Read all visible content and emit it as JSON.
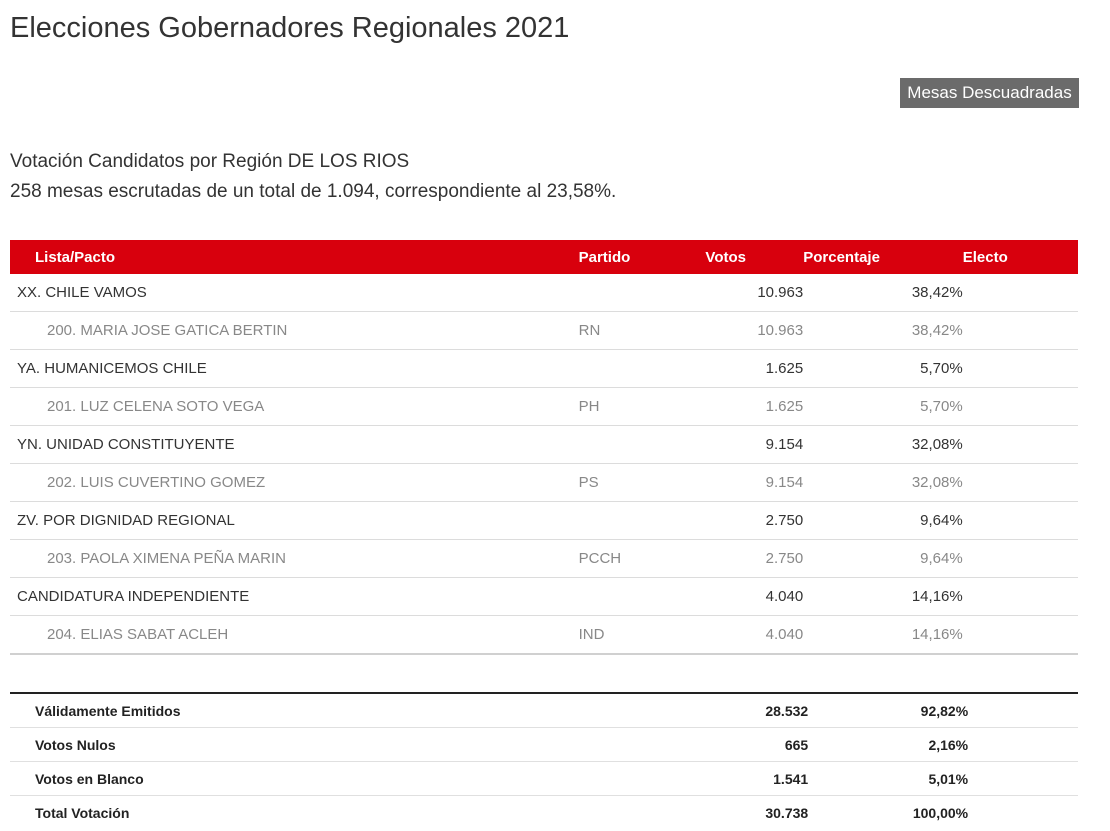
{
  "title": "Elecciones Gobernadores Regionales 2021",
  "mesas_button": "Mesas Descuadradas",
  "subtitle_line1": "Votación Candidatos por Región DE LOS RIOS",
  "subtitle_line2": "258 mesas escrutadas de un total de 1.094, correspondiente al 23,58%.",
  "headers": {
    "lista": "Lista/Pacto",
    "partido": "Partido",
    "votos": "Votos",
    "porcentaje": "Porcentaje",
    "electo": "Electo"
  },
  "rows": [
    {
      "name": "XX. CHILE VAMOS",
      "partido": "",
      "votos": "10.963",
      "porcentaje": "38,42%"
    },
    {
      "name": "200. MARIA JOSE GATICA BERTIN",
      "partido": "RN",
      "votos": "10.963",
      "porcentaje": "38,42%"
    },
    {
      "name": "YA. HUMANICEMOS CHILE",
      "partido": "",
      "votos": "1.625",
      "porcentaje": "5,70%"
    },
    {
      "name": "201. LUZ CELENA SOTO VEGA",
      "partido": "PH",
      "votos": "1.625",
      "porcentaje": "5,70%"
    },
    {
      "name": "YN. UNIDAD CONSTITUYENTE",
      "partido": "",
      "votos": "9.154",
      "porcentaje": "32,08%"
    },
    {
      "name": "202. LUIS CUVERTINO GOMEZ",
      "partido": "PS",
      "votos": "9.154",
      "porcentaje": "32,08%"
    },
    {
      "name": "ZV. POR DIGNIDAD REGIONAL",
      "partido": "",
      "votos": "2.750",
      "porcentaje": "9,64%"
    },
    {
      "name": "203. PAOLA XIMENA PEÑA MARIN",
      "partido": "PCCH",
      "votos": "2.750",
      "porcentaje": "9,64%"
    },
    {
      "name": "CANDIDATURA INDEPENDIENTE",
      "partido": "",
      "votos": "4.040",
      "porcentaje": "14,16%"
    },
    {
      "name": "204. ELIAS SABAT ACLEH",
      "partido": "IND",
      "votos": "4.040",
      "porcentaje": "14,16%"
    }
  ],
  "totals": [
    {
      "label": "Válidamente Emitidos",
      "votos": "28.532",
      "porcentaje": "92,82%"
    },
    {
      "label": "Votos Nulos",
      "votos": "665",
      "porcentaje": "2,16%"
    },
    {
      "label": "Votos en Blanco",
      "votos": "1.541",
      "porcentaje": "5,01%"
    },
    {
      "label": "Total Votación",
      "votos": "30.738",
      "porcentaje": "100,00%"
    }
  ],
  "colors": {
    "header_red": "#d8000d",
    "button_gray": "#6b6b6b"
  }
}
